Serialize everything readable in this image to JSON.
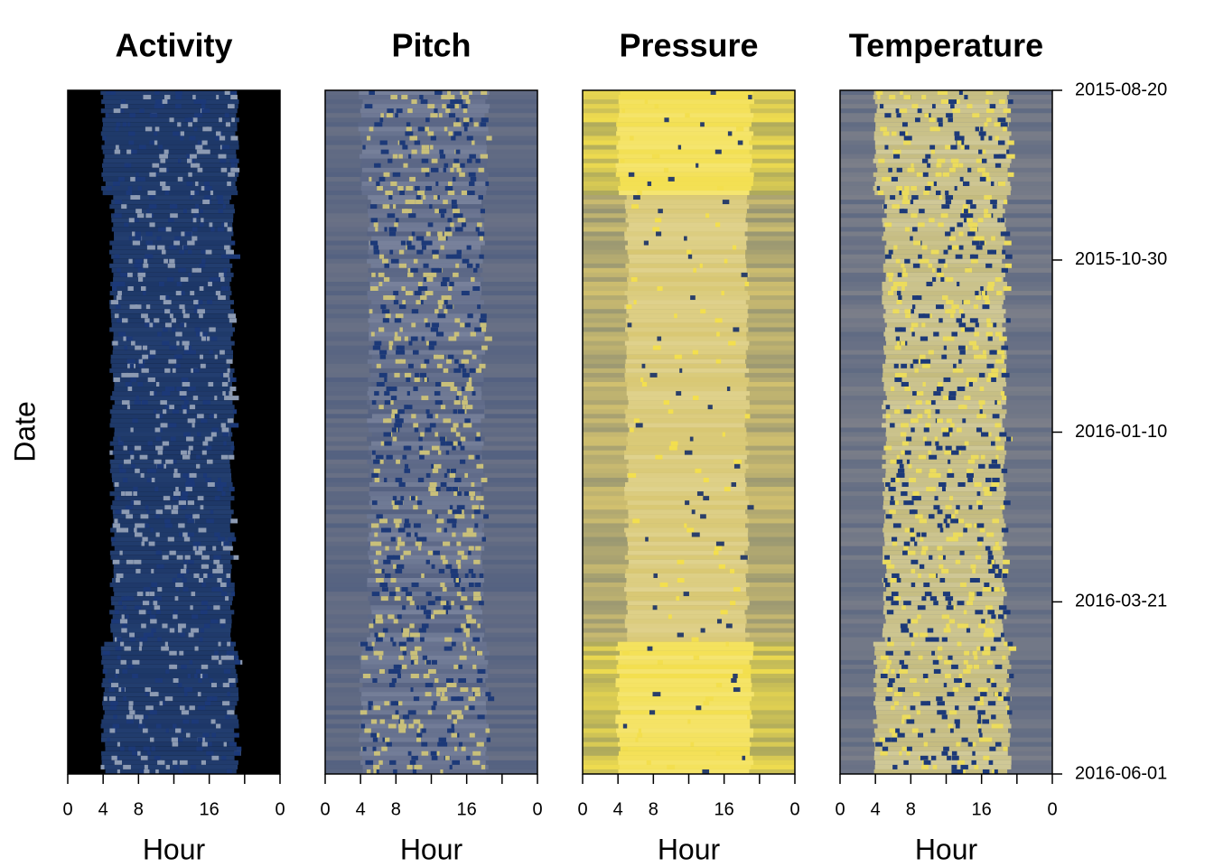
{
  "chart_data": [
    {
      "type": "heatmap",
      "title": "Activity",
      "xlabel": "Hour",
      "ylabel": "Date",
      "xlim": [
        0,
        24
      ],
      "xticks": [
        0,
        4,
        8,
        16,
        {
          "value": 24,
          "label": "0"
        }
      ],
      "xminor_ticks": [
        12,
        20
      ],
      "colors": {
        "night": "#000000",
        "day": "#1d3767",
        "speck": "#8d9bb3"
      }
    },
    {
      "type": "heatmap",
      "title": "Pitch",
      "xlabel": "Hour",
      "xlim": [
        0,
        24
      ],
      "xticks": [
        0,
        4,
        8,
        16,
        {
          "value": 24,
          "label": "0"
        }
      ],
      "xminor_ticks": [
        12,
        20
      ],
      "colors": {
        "night": "#6a7185",
        "day": "#566282",
        "speck": "#c9c07a"
      }
    },
    {
      "type": "heatmap",
      "title": "Pressure",
      "xlabel": "Hour",
      "xlim": [
        0,
        24
      ],
      "xticks": [
        0,
        4,
        8,
        16,
        {
          "value": 24,
          "label": "0"
        }
      ],
      "xminor_ticks": [
        12,
        20
      ],
      "colors": {
        "night": "#d2c16f",
        "day": "#d8c772",
        "speck": "#f3df4e"
      }
    },
    {
      "type": "heatmap",
      "title": "Temperature",
      "xlabel": "Hour",
      "xlim": [
        0,
        24
      ],
      "xticks": [
        0,
        4,
        8,
        16,
        {
          "value": 24,
          "label": "0"
        }
      ],
      "xminor_ticks": [
        12,
        20
      ],
      "colors": {
        "night": "#7c7f89",
        "day": "#c4bb7e",
        "speck": "#ecdc5c"
      },
      "ylim": [
        "2015-08-20",
        "2016-06-01"
      ],
      "yticks": [
        "2015-08-20",
        "2015-10-30",
        "2016-01-10",
        "2016-03-21",
        "2016-06-01"
      ]
    }
  ]
}
